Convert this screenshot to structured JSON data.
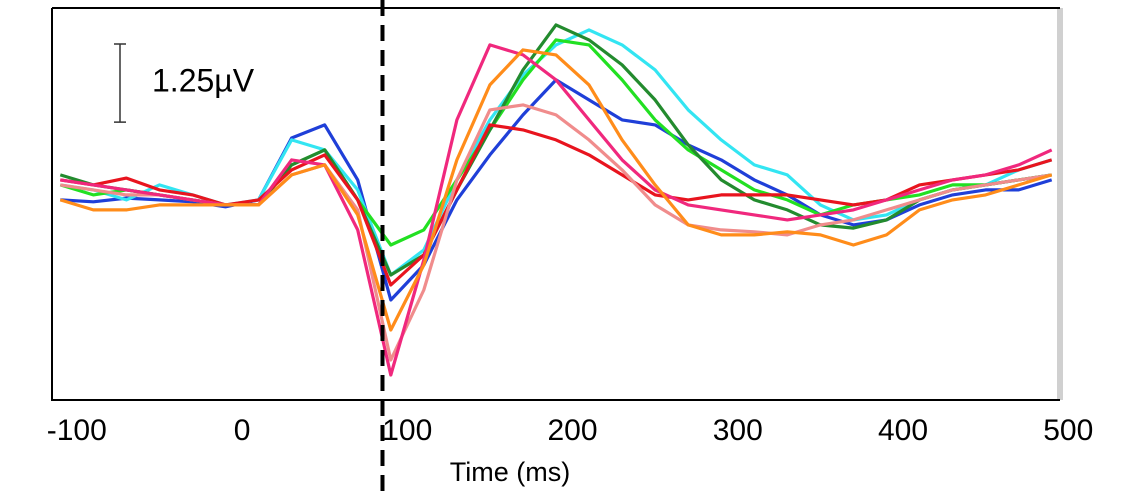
{
  "chart_data": {
    "type": "line",
    "x_label": "Time (ms)",
    "xlim": [
      -115,
      495
    ],
    "xticks": [
      -100,
      0,
      100,
      200,
      300,
      400,
      500
    ],
    "ylim": [
      -3.2,
      3.07
    ],
    "vline": 85,
    "scale_bar": {
      "value": 1.25,
      "label": "1.25µV"
    },
    "x": [
      -110,
      -90,
      -70,
      -50,
      -30,
      -10,
      10,
      30,
      50,
      70,
      90,
      110,
      130,
      150,
      170,
      190,
      210,
      230,
      250,
      270,
      290,
      310,
      330,
      350,
      370,
      390,
      410,
      430,
      450,
      470,
      490
    ],
    "series": [
      {
        "color": "#1f3fd8",
        "values": [
          0,
          -0.03,
          0.03,
          0,
          -0.03,
          -0.11,
          0,
          0.99,
          1.2,
          0.32,
          -1.6,
          -1.04,
          0,
          0.72,
          1.36,
          1.92,
          1.6,
          1.28,
          1.2,
          0.88,
          0.64,
          0.32,
          0.08,
          -0.24,
          -0.4,
          -0.32,
          -0.08,
          0.08,
          0.16,
          0.16,
          0.32
        ]
      },
      {
        "color": "#33e5f2",
        "values": [
          0.24,
          0.16,
          0,
          0.24,
          0.08,
          -0.08,
          0,
          0.96,
          0.8,
          0.16,
          -1.2,
          -0.8,
          0.32,
          1.28,
          2,
          2.48,
          2.72,
          2.48,
          2.08,
          1.44,
          0.96,
          0.56,
          0.4,
          -0.08,
          -0.32,
          -0.24,
          0,
          0.16,
          0.24,
          0.48,
          0.64
        ]
      },
      {
        "color": "#22e022",
        "values": [
          0.24,
          0.08,
          0.16,
          0.08,
          0,
          -0.08,
          -0.08,
          0.56,
          0.8,
          0,
          -0.72,
          -0.48,
          0.32,
          1.12,
          1.92,
          2.56,
          2.48,
          1.92,
          1.28,
          0.8,
          0.48,
          0.16,
          0,
          -0.24,
          -0.08,
          0,
          0.08,
          0.24,
          0.24,
          0.32,
          0.4
        ]
      },
      {
        "color": "#238b2e",
        "values": [
          0.4,
          0.24,
          0.16,
          0.08,
          0,
          -0.08,
          -0.08,
          0.56,
          0.8,
          0,
          -1.2,
          -0.88,
          0.16,
          1.12,
          2.08,
          2.8,
          2.56,
          2.16,
          1.6,
          0.88,
          0.32,
          0,
          -0.16,
          -0.4,
          -0.45,
          -0.32,
          0,
          0.16,
          0.24,
          0.32,
          0.4
        ]
      },
      {
        "color": "#e8141e",
        "values": [
          0.32,
          0.24,
          0.35,
          0.16,
          0.08,
          -0.08,
          0,
          0.48,
          0.72,
          0,
          -1.36,
          -0.88,
          0.16,
          1.2,
          1.12,
          0.96,
          0.72,
          0.4,
          0.08,
          0,
          0.08,
          0.08,
          0.08,
          0,
          -0.08,
          0,
          0.24,
          0.32,
          0.4,
          0.48,
          0.64
        ]
      },
      {
        "color": "#f08c8c",
        "values": [
          0.24,
          0.16,
          0.08,
          0.08,
          0,
          -0.08,
          -0.08,
          0.4,
          0.56,
          -0.16,
          -2.56,
          -1.44,
          0.32,
          1.44,
          1.52,
          1.36,
          0.96,
          0.48,
          -0.08,
          -0.4,
          -0.48,
          -0.51,
          -0.56,
          -0.4,
          -0.32,
          -0.16,
          0,
          0.16,
          0.24,
          0.32,
          0.4
        ]
      },
      {
        "color": "#f0287d",
        "values": [
          0.32,
          0.24,
          0.16,
          0.08,
          0,
          -0.08,
          -0.08,
          0.64,
          0.56,
          -0.48,
          -2.8,
          -0.96,
          1.28,
          2.48,
          2.32,
          1.92,
          1.28,
          0.64,
          0.16,
          -0.08,
          -0.16,
          -0.24,
          -0.32,
          -0.24,
          -0.16,
          0,
          0.16,
          0.32,
          0.4,
          0.56,
          0.8
        ]
      },
      {
        "color": "#ff8c1a",
        "values": [
          0,
          -0.16,
          -0.16,
          -0.08,
          -0.08,
          -0.08,
          -0.08,
          0.4,
          0.56,
          -0.24,
          -2.08,
          -1.04,
          0.64,
          1.84,
          2.4,
          2.32,
          1.84,
          0.96,
          0.24,
          -0.4,
          -0.56,
          -0.56,
          -0.51,
          -0.56,
          -0.72,
          -0.56,
          -0.16,
          0,
          0.08,
          0.24,
          0.4
        ]
      }
    ]
  }
}
